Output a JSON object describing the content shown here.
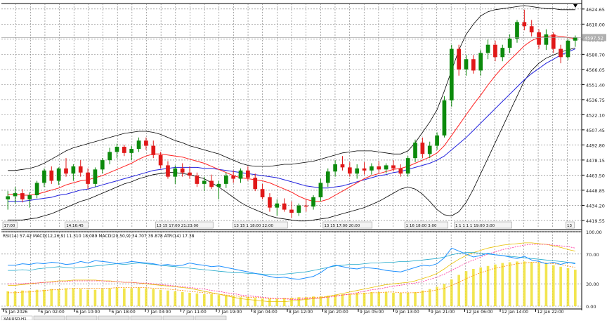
{
  "chart_data": {
    "type": "candlestick",
    "symbol_tab": "XAUUSD,H1",
    "bottom_tabs": [
      "XAUUSD,H1",
      "",
      "",
      "",
      "",
      "",
      ""
    ],
    "price_axis_labels": [
      "4624.65",
      "4610.00",
      "4595.35",
      "4580.70",
      "4566.05",
      "4551.40",
      "4536.75",
      "4522.10",
      "4507.45",
      "4492.80",
      "4478.15",
      "4463.50",
      "4448.85",
      "4434.20",
      "4419.55"
    ],
    "price_axis_range": [
      4412,
      4630
    ],
    "current_price_label": "4597.52",
    "time_axis_labels": [
      "5 Jan 2026",
      "6 Jan 02:00",
      "6 Jan 10:00",
      "6 Jan 18:00",
      "7 Jan 03:00",
      "7 Jan 11:00",
      "7 Jan 19:00",
      "8 Jan 04:00",
      "8 Jan 12:00",
      "8 Jan 20:00",
      "9 Jan 05:00",
      "9 Jan 13:00",
      "9 Jan 21:00",
      "12 Jan 06:00",
      "12 Jan 14:00",
      "12 Jan 22:00"
    ],
    "session_separators": [
      {
        "text": "17:00"
      },
      {
        "text": "14:16:45"
      },
      {
        "text": "13 15 17:00 21:23:00"
      },
      {
        "text": "13 15 1 18:00 22:00"
      },
      {
        "text": "13 15 17:00 20:00"
      },
      {
        "text": "1 16 18:00 3:00"
      },
      {
        "text": "1 1 1 1 1 19:00 3:00"
      },
      {
        "text": "13"
      }
    ],
    "indicator_title": "RSI(14) 57.42  MACD(12,26,9) 11.310 18.089  MACD(20,50,9) 34.707 39.878  ATR(14) 17.38",
    "indicator_axis_labels": [
      "100.00",
      "70.00",
      "30.00",
      "0.00"
    ],
    "indicator_range": [
      0,
      100
    ],
    "series": {
      "ohlc": [
        [
          4440,
          4448,
          4430,
          4443
        ],
        [
          4443,
          4452,
          4436,
          4446
        ],
        [
          4446,
          4450,
          4437,
          4440
        ],
        [
          4440,
          4447,
          4432,
          4444
        ],
        [
          4444,
          4458,
          4441,
          4456
        ],
        [
          4456,
          4470,
          4452,
          4468
        ],
        [
          4468,
          4472,
          4455,
          4458
        ],
        [
          4458,
          4471,
          4454,
          4470
        ],
        [
          4470,
          4480,
          4462,
          4465
        ],
        [
          4465,
          4474,
          4458,
          4472
        ],
        [
          4472,
          4478,
          4462,
          4466
        ],
        [
          4466,
          4470,
          4450,
          4455
        ],
        [
          4455,
          4471,
          4452,
          4469
        ],
        [
          4469,
          4480,
          4465,
          4478
        ],
        [
          4478,
          4490,
          4474,
          4486
        ],
        [
          4486,
          4494,
          4480,
          4491
        ],
        [
          4491,
          4493,
          4482,
          4485
        ],
        [
          4485,
          4492,
          4478,
          4489
        ],
        [
          4489,
          4500,
          4486,
          4497
        ],
        [
          4497,
          4500,
          4488,
          4492
        ],
        [
          4492,
          4497,
          4480,
          4483
        ],
        [
          4483,
          4486,
          4470,
          4473
        ],
        [
          4473,
          4477,
          4460,
          4462
        ],
        [
          4462,
          4473,
          4455,
          4470
        ],
        [
          4470,
          4475,
          4462,
          4466
        ],
        [
          4466,
          4472,
          4460,
          4463
        ],
        [
          4463,
          4466,
          4452,
          4455
        ],
        [
          4455,
          4462,
          4448,
          4458
        ],
        [
          4458,
          4464,
          4450,
          4452
        ],
        [
          4452,
          4458,
          4440,
          4455
        ],
        [
          4455,
          4466,
          4451,
          4463
        ],
        [
          4463,
          4468,
          4456,
          4460
        ],
        [
          4460,
          4470,
          4456,
          4468
        ],
        [
          4468,
          4472,
          4458,
          4461
        ],
        [
          4461,
          4465,
          4448,
          4450
        ],
        [
          4450,
          4455,
          4440,
          4442
        ],
        [
          4442,
          4446,
          4428,
          4432
        ],
        [
          4432,
          4440,
          4424,
          4436
        ],
        [
          4436,
          4441,
          4428,
          4430
        ],
        [
          4430,
          4438,
          4422,
          4427
        ],
        [
          4427,
          4436,
          4424,
          4434
        ],
        [
          4434,
          4440,
          4428,
          4433
        ],
        [
          4433,
          4444,
          4430,
          4442
        ],
        [
          4442,
          4460,
          4438,
          4456
        ],
        [
          4456,
          4470,
          4452,
          4467
        ],
        [
          4467,
          4478,
          4462,
          4474
        ],
        [
          4474,
          4482,
          4468,
          4471
        ],
        [
          4471,
          4476,
          4462,
          4465
        ],
        [
          4465,
          4474,
          4460,
          4470
        ],
        [
          4470,
          4476,
          4464,
          4468
        ],
        [
          4468,
          4475,
          4464,
          4472
        ],
        [
          4472,
          4477,
          4466,
          4469
        ],
        [
          4469,
          4475,
          4465,
          4473
        ],
        [
          4473,
          4478,
          4467,
          4470
        ],
        [
          4470,
          4474,
          4462,
          4465
        ],
        [
          4465,
          4482,
          4462,
          4480
        ],
        [
          4480,
          4498,
          4476,
          4495
        ],
        [
          4495,
          4500,
          4480,
          4484
        ],
        [
          4484,
          4496,
          4480,
          4492
        ],
        [
          4492,
          4505,
          4488,
          4502
        ],
        [
          4502,
          4540,
          4500,
          4536
        ],
        [
          4536,
          4590,
          4530,
          4586
        ],
        [
          4586,
          4590,
          4560,
          4566
        ],
        [
          4566,
          4580,
          4560,
          4576
        ],
        [
          4576,
          4580,
          4562,
          4565
        ],
        [
          4565,
          4585,
          4560,
          4582
        ],
        [
          4582,
          4595,
          4576,
          4590
        ],
        [
          4590,
          4594,
          4574,
          4578
        ],
        [
          4578,
          4590,
          4574,
          4587
        ],
        [
          4587,
          4600,
          4582,
          4596
        ],
        [
          4596,
          4614,
          4592,
          4612
        ],
        [
          4612,
          4624,
          4604,
          4608
        ],
        [
          4608,
          4614,
          4598,
          4602
        ],
        [
          4602,
          4605,
          4586,
          4590
        ],
        [
          4590,
          4605,
          4585,
          4600
        ],
        [
          4600,
          4602,
          4582,
          4586
        ],
        [
          4586,
          4590,
          4572,
          4578
        ],
        [
          4578,
          4596,
          4575,
          4594
        ],
        [
          4594,
          4599,
          4588,
          4597
        ]
      ],
      "ma_red": [
        4445,
        4445,
        4444,
        4444,
        4445,
        4447,
        4449,
        4451,
        4454,
        4456,
        4458,
        4459,
        4461,
        4463,
        4466,
        4469,
        4472,
        4475,
        4479,
        4482,
        4484,
        4484,
        4483,
        4482,
        4481,
        4479,
        4477,
        4475,
        4472,
        4469,
        4466,
        4463,
        4461,
        4460,
        4459,
        4458,
        4456,
        4453,
        4450,
        4447,
        4443,
        4440,
        4438,
        4438,
        4440,
        4444,
        4448,
        4452,
        4456,
        4460,
        4463,
        4465,
        4467,
        4469,
        4470,
        4472,
        4475,
        4478,
        4481,
        4485,
        4492,
        4502,
        4512,
        4522,
        4532,
        4541,
        4551,
        4560,
        4568,
        4575,
        4582,
        4589,
        4594,
        4597,
        4598,
        4599,
        4598,
        4597,
        4596
      ],
      "ma_blue": [
        4438,
        4438,
        4438,
        4439,
        4440,
        4441,
        4442,
        4444,
        4445,
        4447,
        4449,
        4450,
        4452,
        4454,
        4456,
        4458,
        4460,
        4462,
        4464,
        4466,
        4468,
        4469,
        4470,
        4471,
        4471,
        4471,
        4471,
        4470,
        4470,
        4469,
        4468,
        4467,
        4466,
        4465,
        4464,
        4463,
        4462,
        4461,
        4459,
        4457,
        4455,
        4453,
        4452,
        4451,
        4451,
        4452,
        4453,
        4455,
        4457,
        4459,
        4461,
        4463,
        4464,
        4466,
        4467,
        4469,
        4471,
        4473,
        4475,
        4478,
        4482,
        4488,
        4494,
        4500,
        4507,
        4514,
        4521,
        4528,
        4535,
        4542,
        4549,
        4556,
        4562,
        4567,
        4572,
        4576,
        4580,
        4583,
        4586
      ],
      "bb_upper": [
        4468,
        4468,
        4469,
        4470,
        4472,
        4475,
        4479,
        4483,
        4487,
        4490,
        4492,
        4494,
        4496,
        4498,
        4500,
        4502,
        4504,
        4505,
        4506,
        4506,
        4505,
        4503,
        4500,
        4497,
        4495,
        4492,
        4490,
        4488,
        4486,
        4484,
        4481,
        4478,
        4475,
        4473,
        4472,
        4472,
        4472,
        4473,
        4474,
        4474,
        4475,
        4476,
        4477,
        4479,
        4481,
        4483,
        4485,
        4486,
        4487,
        4487,
        4487,
        4486,
        4485,
        4484,
        4484,
        4487,
        4495,
        4505,
        4515,
        4527,
        4545,
        4565,
        4585,
        4600,
        4610,
        4618,
        4622,
        4624,
        4625,
        4626,
        4627,
        4628,
        4627,
        4626,
        4625,
        4625,
        4624,
        4624,
        4624
      ],
      "bb_lower": [
        4420,
        4420,
        4420,
        4421,
        4422,
        4424,
        4426,
        4429,
        4432,
        4435,
        4438,
        4440,
        4443,
        4446,
        4449,
        4452,
        4455,
        4457,
        4460,
        4462,
        4464,
        4465,
        4466,
        4466,
        4465,
        4464,
        4462,
        4460,
        4456,
        4452,
        4447,
        4442,
        4437,
        4433,
        4430,
        4427,
        4424,
        4422,
        4421,
        4420,
        4419,
        4419,
        4420,
        4421,
        4422,
        4424,
        4426,
        4428,
        4430,
        4432,
        4435,
        4438,
        4442,
        4446,
        4450,
        4452,
        4450,
        4445,
        4438,
        4430,
        4425,
        4424,
        4428,
        4437,
        4450,
        4465,
        4480,
        4495,
        4510,
        4525,
        4540,
        4555,
        4565,
        4572,
        4577,
        4580,
        4583,
        4585,
        4587
      ],
      "rsi": [
        55,
        55,
        57,
        56,
        58,
        57,
        59,
        58,
        56,
        57,
        60,
        58,
        61,
        60,
        59,
        57,
        58,
        60,
        59,
        58,
        57,
        55,
        56,
        54,
        55,
        58,
        56,
        55,
        53,
        54,
        52,
        50,
        48,
        46,
        44,
        42,
        40,
        38,
        39,
        37,
        36,
        38,
        40,
        45,
        52,
        55,
        53,
        51,
        50,
        52,
        51,
        50,
        48,
        47,
        46,
        49,
        52,
        55,
        54,
        57,
        65,
        78,
        74,
        70,
        66,
        68,
        71,
        69,
        68,
        66,
        64,
        67,
        62,
        60,
        57,
        59,
        56,
        59,
        57
      ],
      "macd_hist": [
        20,
        20,
        21,
        21,
        22,
        22,
        23,
        23,
        24,
        24,
        23,
        22,
        22,
        23,
        24,
        25,
        24,
        24,
        25,
        24,
        23,
        22,
        21,
        20,
        19,
        18,
        17,
        16,
        16,
        15,
        14,
        13,
        12,
        12,
        11,
        10,
        10,
        10,
        11,
        11,
        12,
        12,
        13,
        13,
        14,
        15,
        16,
        17,
        18,
        18,
        19,
        19,
        19,
        18,
        18,
        18,
        19,
        21,
        23,
        26,
        30,
        36,
        42,
        47,
        50,
        52,
        54,
        56,
        58,
        59,
        60,
        60,
        59,
        58,
        57,
        55,
        53,
        51,
        49
      ],
      "macd_signal": [
        18,
        18,
        19,
        19,
        20,
        21,
        22,
        22,
        23,
        24,
        24,
        24,
        24,
        24,
        24,
        25,
        25,
        25,
        25,
        25,
        24,
        24,
        23,
        22,
        21,
        20,
        19,
        18,
        17,
        16,
        15,
        14,
        13,
        12,
        12,
        11,
        10,
        10,
        10,
        10,
        11,
        11,
        12,
        12,
        13,
        14,
        15,
        16,
        16,
        17,
        18,
        18,
        19,
        19,
        18,
        18,
        18,
        19,
        20,
        22,
        24,
        28,
        32,
        37,
        41,
        45,
        48,
        51,
        53,
        55,
        57,
        58,
        59,
        59,
        58,
        57,
        56,
        54,
        52
      ],
      "macd2": [
        28,
        28,
        29,
        30,
        31,
        32,
        33,
        34,
        34,
        35,
        35,
        35,
        35,
        34,
        34,
        33,
        32,
        32,
        31,
        30,
        29,
        28,
        27,
        26,
        25,
        24,
        22,
        20,
        18,
        16,
        14,
        12,
        10,
        9,
        8,
        7,
        6,
        6,
        6,
        7,
        8,
        9,
        10,
        11,
        13,
        15,
        17,
        19,
        21,
        23,
        25,
        27,
        29,
        30,
        31,
        32,
        34,
        37,
        40,
        44,
        50,
        57,
        63,
        68,
        72,
        75,
        78,
        80,
        82,
        83,
        84,
        85,
        85,
        84,
        83,
        81,
        79,
        76,
        74
      ],
      "macd2_signal": [
        30,
        30,
        30,
        31,
        31,
        32,
        32,
        33,
        33,
        34,
        34,
        34,
        34,
        34,
        33,
        33,
        32,
        32,
        31,
        31,
        30,
        29,
        28,
        27,
        26,
        25,
        24,
        23,
        21,
        20,
        18,
        17,
        15,
        14,
        13,
        12,
        11,
        10,
        10,
        9,
        9,
        10,
        10,
        11,
        12,
        13,
        15,
        16,
        18,
        20,
        22,
        23,
        25,
        27,
        28,
        30,
        31,
        33,
        36,
        39,
        43,
        48,
        53,
        58,
        62,
        66,
        70,
        73,
        76,
        78,
        80,
        82,
        83,
        83,
        83,
        82,
        81,
        80,
        78
      ],
      "atr": [
        48,
        48,
        49,
        48,
        50,
        51,
        52,
        53,
        52,
        51,
        52,
        53,
        54,
        55,
        56,
        57,
        56,
        57,
        58,
        57,
        56,
        55,
        54,
        53,
        52,
        51,
        50,
        49,
        48,
        47,
        46,
        45,
        45,
        44,
        44,
        43,
        43,
        42,
        43,
        44,
        45,
        46,
        48,
        50,
        52,
        54,
        55,
        56,
        56,
        57,
        58,
        58,
        59,
        59,
        60,
        60,
        61,
        62,
        63,
        64,
        66,
        69,
        71,
        72,
        72,
        71,
        70,
        69,
        68,
        67,
        66,
        65,
        64,
        63,
        62,
        61,
        60,
        59,
        58
      ]
    },
    "colors": {
      "bull": "#0c8a0c",
      "bear": "#e01818",
      "ma_red": "#ff2020",
      "ma_blue": "#2222dd",
      "bands": "#000000",
      "rsi": "#1e90ff",
      "macd_hist": "#f0e030",
      "macd_signal": "#ff8c00",
      "macd2": "#ff2a9a",
      "atr": "#22aacc",
      "grid": "#777777"
    }
  }
}
